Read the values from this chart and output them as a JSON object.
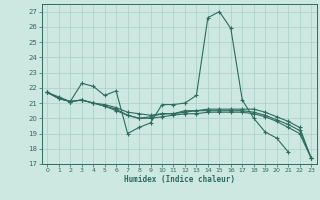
{
  "xlabel": "Humidex (Indice chaleur)",
  "bg_color": "#cce8e0",
  "grid_color": "#aacfc8",
  "line_color": "#2e6b5e",
  "xlim": [
    -0.5,
    23.5
  ],
  "ylim": [
    17,
    27.5
  ],
  "yticks": [
    17,
    18,
    19,
    20,
    21,
    22,
    23,
    24,
    25,
    26,
    27
  ],
  "xticks": [
    0,
    1,
    2,
    3,
    4,
    5,
    6,
    7,
    8,
    9,
    10,
    11,
    12,
    13,
    14,
    15,
    16,
    17,
    18,
    19,
    20,
    21,
    22,
    23
  ],
  "series": [
    [
      21.7,
      21.4,
      21.1,
      22.3,
      22.1,
      21.5,
      21.8,
      19.0,
      19.4,
      19.7,
      20.9,
      20.9,
      21.0,
      21.5,
      26.6,
      27.0,
      25.9,
      21.2,
      20.0,
      19.1,
      18.7,
      17.8,
      null,
      null
    ],
    [
      21.7,
      21.3,
      21.1,
      21.2,
      21.0,
      20.8,
      20.6,
      20.2,
      20.0,
      20.1,
      20.3,
      20.3,
      20.4,
      20.5,
      20.6,
      20.6,
      20.6,
      20.6,
      20.6,
      20.4,
      20.1,
      19.8,
      19.4,
      17.4
    ],
    [
      21.7,
      21.3,
      21.1,
      21.2,
      21.0,
      20.8,
      20.5,
      20.2,
      20.0,
      20.0,
      20.1,
      20.2,
      20.3,
      20.3,
      20.4,
      20.4,
      20.4,
      20.4,
      20.3,
      20.1,
      19.8,
      19.4,
      19.0,
      17.4
    ],
    [
      21.7,
      21.3,
      21.1,
      21.2,
      21.0,
      20.9,
      20.7,
      20.4,
      20.3,
      20.2,
      20.3,
      20.3,
      20.5,
      20.5,
      20.5,
      20.5,
      20.5,
      20.5,
      20.4,
      20.2,
      19.9,
      19.6,
      19.2,
      17.4
    ]
  ]
}
